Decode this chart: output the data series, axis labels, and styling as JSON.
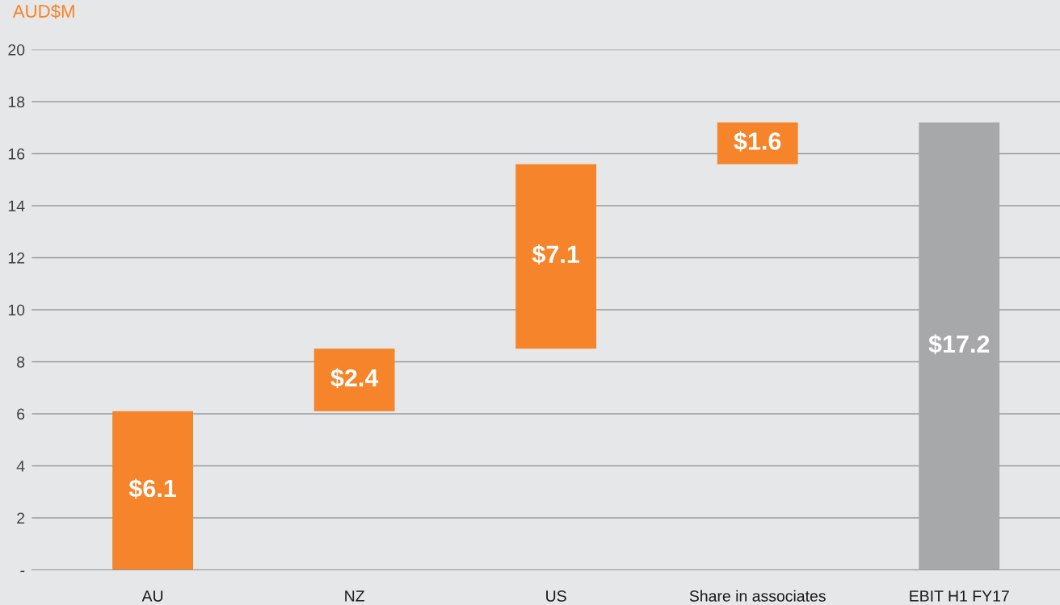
{
  "chart_data": {
    "type": "bar",
    "ylabel": "AUD$M",
    "categories": [
      "AU",
      "NZ",
      "US",
      "Share in associates",
      "EBIT H1 FY17"
    ],
    "values": [
      6.1,
      2.4,
      7.1,
      1.6,
      17.2
    ],
    "base": [
      0,
      6.1,
      8.5,
      15.6,
      0
    ],
    "colors": [
      "#f5842a",
      "#f5842a",
      "#f5842a",
      "#f5842a",
      "#a7a8aa"
    ],
    "value_labels": [
      "$6.1",
      "$2.4",
      "$7.1",
      "$1.6",
      "$17.2"
    ],
    "ylim": [
      0,
      20
    ],
    "yticks": [
      {
        "value": 0,
        "label": "-"
      },
      2,
      4,
      6,
      8,
      10,
      12,
      14,
      16,
      18,
      20
    ],
    "grid": "y"
  }
}
